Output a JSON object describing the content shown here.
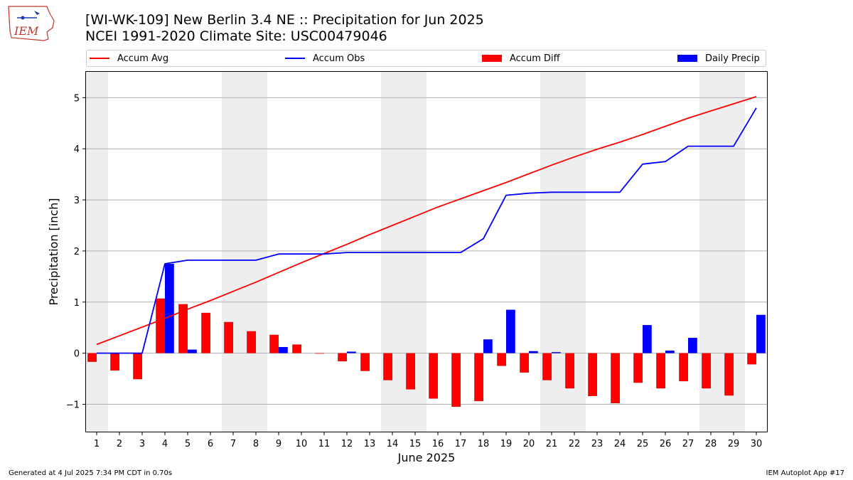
{
  "logo": {
    "text": "IEM"
  },
  "title_line1": "[WI-WK-109] New Berlin 3.4 NE :: Precipitation for Jun 2025",
  "title_line2": "NCEI 1991-2020 Climate Site: USC00479046",
  "footer": {
    "left": "Generated at 4 Jul 2025 7:34 PM CDT in 0.70s",
    "right": "IEM Autoplot App #17"
  },
  "colors": {
    "avg": "#ff0000",
    "obs": "#0000ff",
    "diff": "#ff0000",
    "daily": "#0000ff",
    "weekend_band": "#eeeeee",
    "grid": "#b0b0b0"
  },
  "chart_data": {
    "type": "bar",
    "xlabel": "June 2025",
    "ylabel": "Precipitation [inch]",
    "x": [
      1,
      2,
      3,
      4,
      5,
      6,
      7,
      8,
      9,
      10,
      11,
      12,
      13,
      14,
      15,
      16,
      17,
      18,
      19,
      20,
      21,
      22,
      23,
      24,
      25,
      26,
      27,
      28,
      29,
      30
    ],
    "xlim": [
      0.5,
      30.5
    ],
    "ylim": [
      -1.55,
      5.52
    ],
    "yticks": [
      -1,
      0,
      1,
      2,
      3,
      4,
      5
    ],
    "grid": "y",
    "legend_position": "top",
    "weekend_bands": [
      [
        1,
        1
      ],
      [
        7,
        8
      ],
      [
        14,
        15
      ],
      [
        21,
        22
      ],
      [
        28,
        29
      ]
    ],
    "series": [
      {
        "name": "Accum Avg",
        "kind": "line",
        "values": [
          0.17,
          0.34,
          0.51,
          0.68,
          0.86,
          1.03,
          1.21,
          1.39,
          1.58,
          1.77,
          1.95,
          2.13,
          2.32,
          2.5,
          2.68,
          2.86,
          3.02,
          3.18,
          3.34,
          3.51,
          3.68,
          3.84,
          3.99,
          4.13,
          4.28,
          4.44,
          4.6,
          4.74,
          4.88,
          5.02
        ]
      },
      {
        "name": "Accum Obs",
        "kind": "line",
        "values": [
          0,
          0,
          0,
          1.75,
          1.82,
          1.82,
          1.82,
          1.82,
          1.94,
          1.94,
          1.94,
          1.97,
          1.97,
          1.97,
          1.97,
          1.97,
          1.97,
          2.24,
          3.09,
          3.13,
          3.15,
          3.15,
          3.15,
          3.15,
          3.7,
          3.75,
          4.05,
          4.05,
          4.05,
          4.8
        ]
      },
      {
        "name": "Accum Diff",
        "kind": "bar",
        "values": [
          -0.17,
          -0.34,
          -0.51,
          1.07,
          0.96,
          0.79,
          0.61,
          0.43,
          0.36,
          0.17,
          -0.01,
          -0.16,
          -0.35,
          -0.53,
          -0.71,
          -0.89,
          -1.05,
          -0.94,
          -0.25,
          -0.38,
          -0.53,
          -0.69,
          -0.84,
          -0.98,
          -0.58,
          -0.69,
          -0.55,
          -0.69,
          -0.83,
          -0.22
        ]
      },
      {
        "name": "Daily Precip",
        "kind": "bar",
        "values": [
          0,
          0,
          0,
          1.75,
          0.07,
          0,
          0,
          0,
          0.12,
          0,
          0,
          0.03,
          0,
          0,
          0,
          0,
          0,
          0.27,
          0.85,
          0.04,
          0.02,
          0,
          0,
          0,
          0.55,
          0.05,
          0.3,
          0,
          0,
          0.75
        ]
      }
    ]
  }
}
